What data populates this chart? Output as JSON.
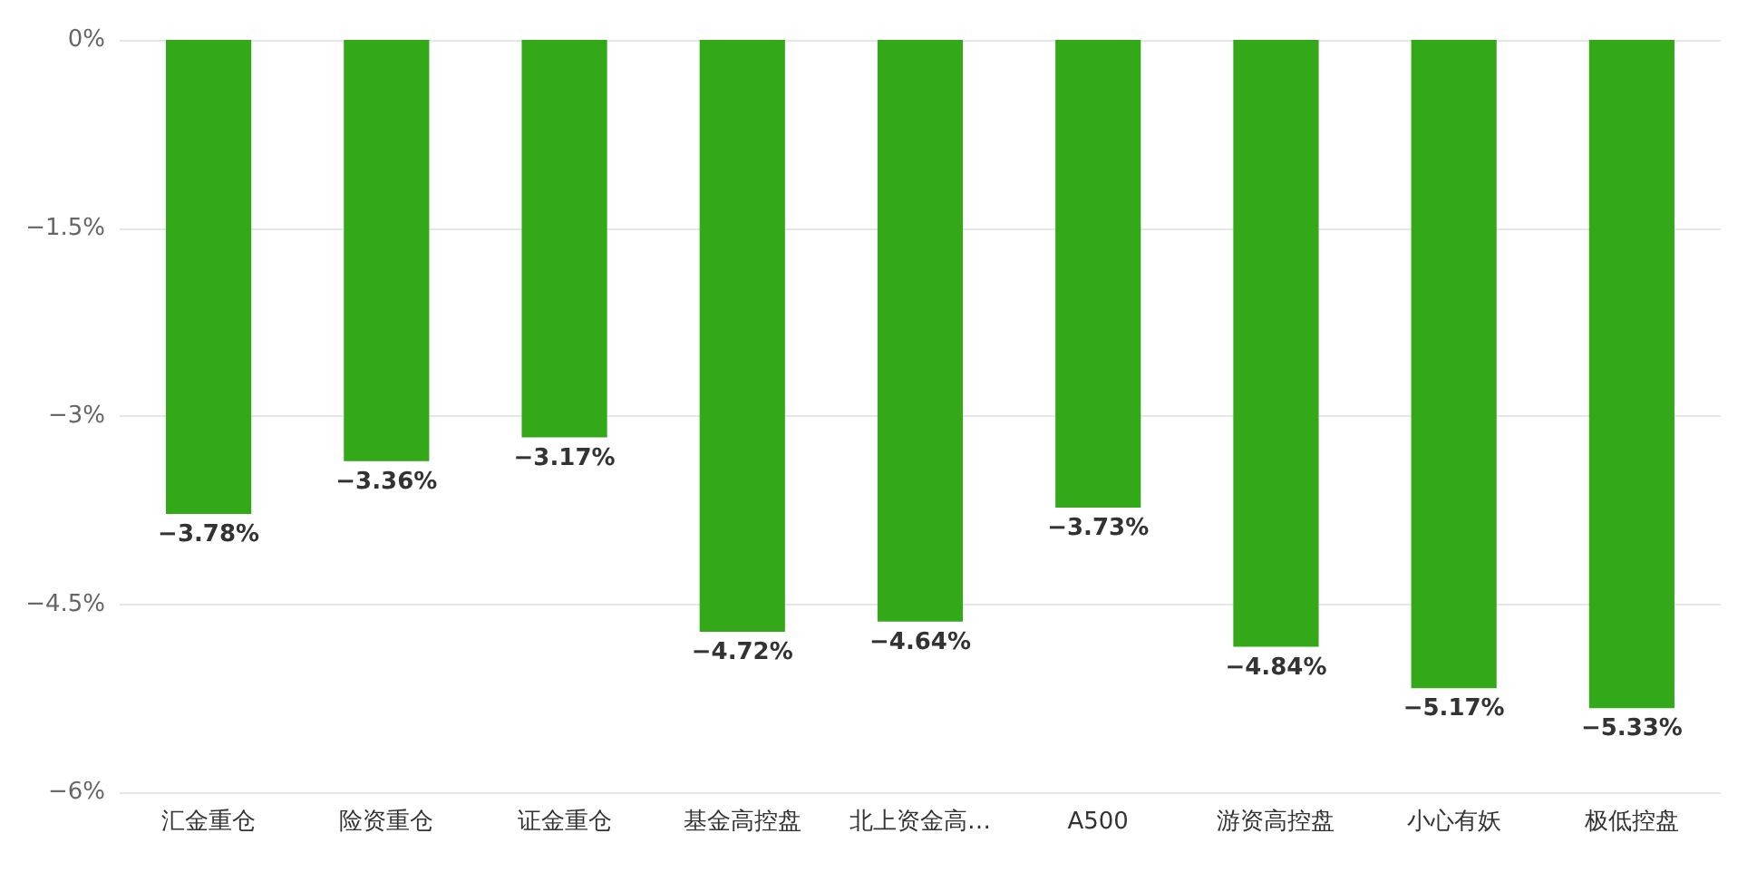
{
  "chart_data": {
    "type": "bar",
    "categories": [
      "汇金重仓",
      "险资重仓",
      "证金重仓",
      "基金高控盘",
      "北上资金高…",
      "A500",
      "游资高控盘",
      "小心有妖",
      "极低控盘"
    ],
    "values": [
      -3.78,
      -3.36,
      -3.17,
      -4.72,
      -4.64,
      -3.73,
      -4.84,
      -5.17,
      -5.33
    ],
    "value_labels": [
      "−3.78%",
      "−3.36%",
      "−3.17%",
      "−4.72%",
      "−4.64%",
      "−3.73%",
      "−4.84%",
      "−5.17%",
      "−5.33%"
    ],
    "color": "#33a91a",
    "ylim": [
      -6,
      0
    ],
    "yticks": [
      {
        "value": 0,
        "label": "0%"
      },
      {
        "value": -1.5,
        "label": "−1.5%"
      },
      {
        "value": -3,
        "label": "−3%"
      },
      {
        "value": -4.5,
        "label": "−4.5%"
      },
      {
        "value": -6,
        "label": "−6%"
      }
    ],
    "grid": "y"
  }
}
